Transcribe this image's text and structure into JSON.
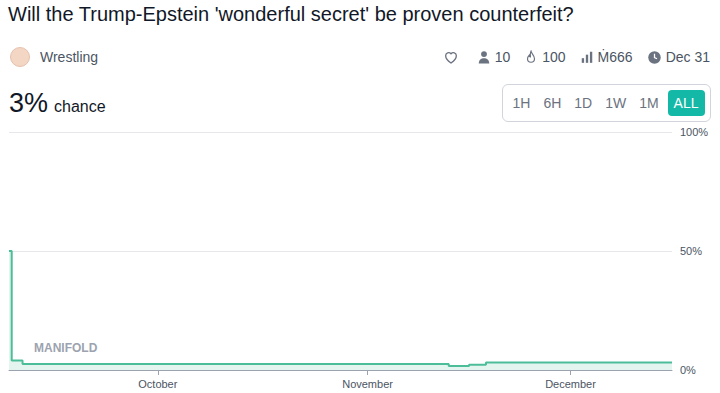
{
  "header": {
    "creator": "Wrestling",
    "traders": "10",
    "bounty": "100",
    "volume": "Ṁ666",
    "close": "Dec 31",
    "probability": "3%",
    "probability_caption": "chance",
    "ranges": [
      "1H",
      "6H",
      "1D",
      "1W",
      "1M",
      "ALL"
    ],
    "selected_range": "ALL"
  },
  "chart_data": {
    "type": "line",
    "title": "Will the Trump-Epstein 'wonderful secret' be proven counterfeit?",
    "annotations": [
      "MANIFOLD"
    ],
    "x": [
      252,
      252.4,
      254,
      316,
      317,
      320,
      322.5,
      350
    ],
    "values": [
      50,
      4,
      2.5,
      2.5,
      1.7,
      2.2,
      3.2,
      3
    ],
    "color": "#4cbd99",
    "marker": "none",
    "line_style": "step",
    "xlim": [
      252,
      350
    ],
    "xticks": [
      {
        "value": 274,
        "label": "October"
      },
      {
        "value": 305,
        "label": "November"
      },
      {
        "value": 335,
        "label": "December"
      }
    ],
    "ylim": [
      0,
      100
    ],
    "yticks": [
      {
        "value": 0,
        "label": "0%"
      },
      {
        "value": 50,
        "label": "50%"
      },
      {
        "value": 100,
        "label": "100%"
      }
    ],
    "grid": true
  }
}
